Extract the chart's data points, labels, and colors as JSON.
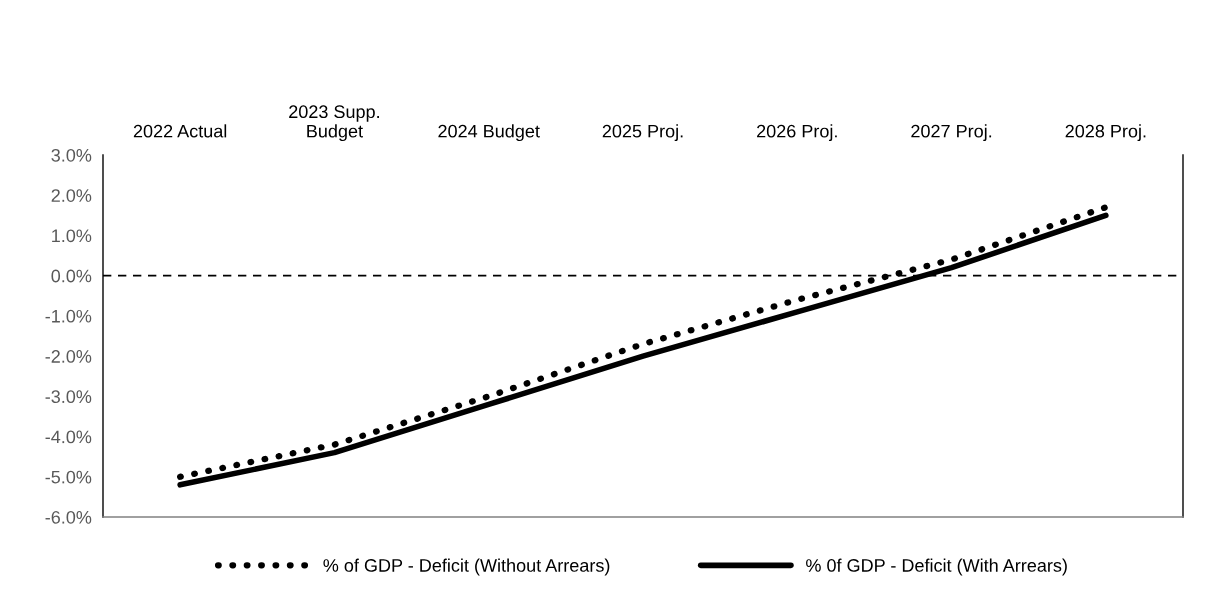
{
  "chart_data": {
    "type": "line",
    "categories": [
      "2022 Actual",
      "2023 Supp.\nBudget",
      "2024 Budget",
      "2025 Proj.",
      "2026 Proj.",
      "2027 Proj.",
      "2028 Proj."
    ],
    "series": [
      {
        "name": "% of GDP - Deficit (Without Arrears)",
        "color": "#000000",
        "line_style": "dotted",
        "values": [
          -5.0,
          -4.2,
          -3.0,
          -1.7,
          -0.6,
          0.4,
          1.7
        ]
      },
      {
        "name": "% 0f GDP - Deficit (With Arrears)",
        "color": "#000000",
        "line_style": "solid",
        "values": [
          -5.2,
          -4.4,
          -3.2,
          -2.0,
          -0.9,
          0.2,
          1.5
        ]
      }
    ],
    "ylim": [
      -6,
      3
    ],
    "yticks": [
      {
        "value": -6,
        "label": "-6.0%"
      },
      {
        "value": -5,
        "label": "-5.0%"
      },
      {
        "value": -4,
        "label": "-4.0%"
      },
      {
        "value": -3,
        "label": "-3.0%"
      },
      {
        "value": -2,
        "label": "-2.0%"
      },
      {
        "value": -1,
        "label": "-1.0%"
      },
      {
        "value": 0,
        "label": "0.0%"
      },
      {
        "value": 1,
        "label": "1.0%"
      },
      {
        "value": 2,
        "label": "2.0%"
      },
      {
        "value": 3,
        "label": "3.0%"
      }
    ],
    "ref_lines": [
      {
        "axis": "y",
        "value": 0,
        "label": null,
        "color": "#000000",
        "line_style": "dashed"
      }
    ],
    "grid": false,
    "legend": "bottom",
    "marker": "none"
  }
}
